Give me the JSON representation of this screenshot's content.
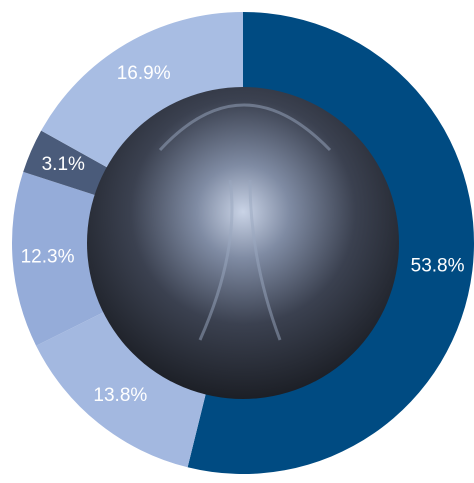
{
  "chart_data": {
    "type": "donut",
    "values": [
      53.8,
      13.8,
      12.3,
      3.1,
      16.9
    ],
    "value_labels": [
      "53.8%",
      "13.8%",
      "12.3%",
      "3.1%",
      "16.9%"
    ],
    "colors": [
      "#004b82",
      "#a3b8e0",
      "#95acd9",
      "#4a5b7a",
      "#a8bde3"
    ]
  }
}
